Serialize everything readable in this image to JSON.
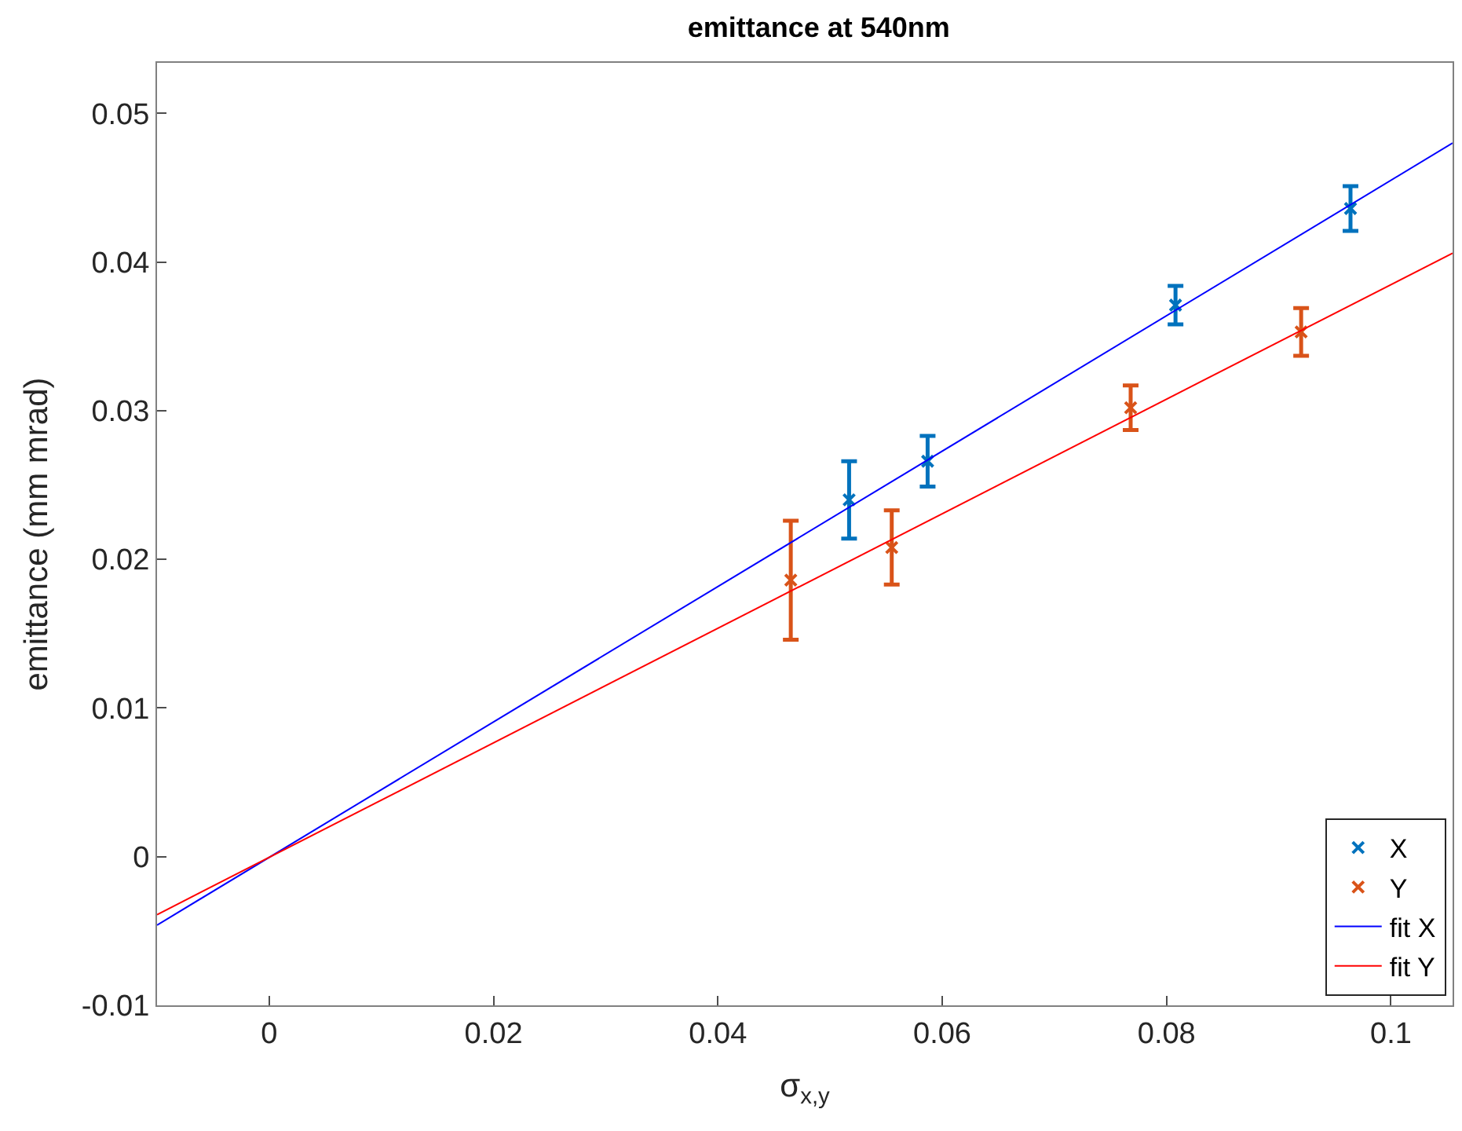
{
  "chart_data": {
    "type": "scatter",
    "title": "emittance at 540nm",
    "xlabel": "σ$_{x,y}$",
    "ylabel": "emittance (mm mrad)",
    "xlim": [
      -0.01,
      0.1055
    ],
    "xticks": [
      {
        "value": 0,
        "label": "0"
      },
      0.02,
      0.04,
      0.06,
      0.08,
      {
        "value": 0.1,
        "label": "0.1"
      }
    ],
    "ylim": [
      -0.01,
      0.0534
    ],
    "yticks": [
      -0.01,
      {
        "value": 0,
        "label": "0"
      },
      0.01,
      0.02,
      0.03,
      0.04,
      0.05
    ],
    "grid": false,
    "legend": "bottom right",
    "marker": "cross",
    "series": [
      {
        "name": "X",
        "color": "#0072bd",
        "x": [
          0.0517,
          0.0587,
          0.0808,
          0.0964
        ],
        "values": [
          0.024,
          0.0266,
          0.0371,
          0.0436
        ],
        "errors": [
          0.0026,
          0.0017,
          0.0013,
          0.0015
        ]
      },
      {
        "name": "Y",
        "color": "#d95319",
        "x": [
          0.0465,
          0.0555,
          0.0768,
          0.092
        ],
        "values": [
          0.0186,
          0.0208,
          0.0302,
          0.0353
        ],
        "errors": [
          0.004,
          0.0025,
          0.0015,
          0.0016
        ]
      },
      {
        "name": "fit X",
        "type": "line",
        "color": "#0000ff",
        "marker": "none",
        "line_style": "solid",
        "x": [
          -0.01,
          0.1055
        ],
        "values": [
          -0.0046,
          0.048
        ]
      },
      {
        "name": "fit Y",
        "type": "line",
        "color": "#ff0000",
        "marker": "none",
        "line_style": "solid",
        "x": [
          -0.01,
          0.1055
        ],
        "values": [
          -0.0039,
          0.0406
        ]
      }
    ]
  }
}
